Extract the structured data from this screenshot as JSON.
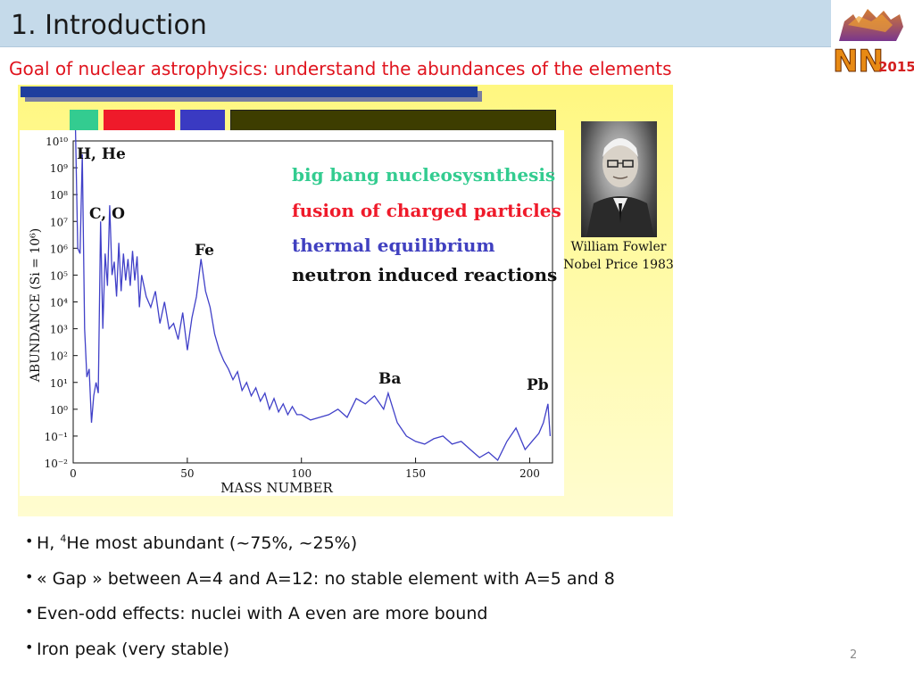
{
  "slide": {
    "title": "1. Introduction",
    "subtitle": "Goal of nuclear astrophysics: understand the abundances of the elements",
    "page_number": "2",
    "logo": {
      "text": "NN2015",
      "icon": "nn2015-conference-logo"
    }
  },
  "photo": {
    "icon": "portrait-photo",
    "caption_line1": "William Fowler",
    "caption_line2": "Nobel Price 1983"
  },
  "chart_data": {
    "type": "line",
    "xlabel": "MASS NUMBER",
    "ylabel": "ABUNDANCE   (Si = 10⁶)",
    "xlim": [
      0,
      210
    ],
    "ylim": [
      -2,
      10
    ],
    "y_scale": "log10",
    "x_ticks": [
      "0",
      "50",
      "100",
      "150",
      "200"
    ],
    "y_ticks": [
      "10⁻²",
      "10⁻¹",
      "10⁰",
      "10¹",
      "10²",
      "10³",
      "10⁴",
      "10⁵",
      "10⁶",
      "10⁷",
      "10⁸",
      "10⁹",
      "10¹⁰"
    ],
    "annotations": [
      {
        "text": "H, He",
        "x": 2,
        "y": 10
      },
      {
        "text": "C, O",
        "x": 8,
        "y": 8
      },
      {
        "text": "Fe",
        "x": 54,
        "y": 6.5
      },
      {
        "text": "Ba",
        "x": 134,
        "y": 1.5
      },
      {
        "text": "Pb",
        "x": 198,
        "y": 1.2
      }
    ],
    "legend": [
      {
        "text": "big bang nucleosysnthesis",
        "color": "#33cc90"
      },
      {
        "text": "fusion of charged particles",
        "color": "#ef1a2a"
      },
      {
        "text": "thermal equilibrium",
        "color": "#4040c0"
      },
      {
        "text": "neutron induced reactions",
        "color": "#111111"
      }
    ],
    "legend_position": "top-right",
    "line_color": "#4040c8",
    "x": [
      1,
      2,
      3,
      4,
      5,
      6,
      7,
      8,
      9,
      10,
      11,
      12,
      13,
      14,
      15,
      16,
      17,
      18,
      19,
      20,
      21,
      22,
      23,
      24,
      25,
      26,
      27,
      28,
      29,
      30,
      32,
      34,
      36,
      38,
      40,
      42,
      44,
      46,
      48,
      50,
      52,
      54,
      56,
      58,
      60,
      62,
      64,
      66,
      68,
      70,
      72,
      74,
      76,
      78,
      80,
      82,
      84,
      86,
      88,
      90,
      92,
      94,
      96,
      98,
      100,
      104,
      108,
      112,
      116,
      120,
      124,
      128,
      132,
      136,
      138,
      142,
      146,
      150,
      154,
      158,
      162,
      166,
      170,
      174,
      178,
      182,
      186,
      190,
      194,
      198,
      202,
      204,
      206,
      208,
      209
    ],
    "y": [
      10.4,
      6.0,
      5.8,
      9.5,
      3.0,
      1.2,
      1.5,
      -0.5,
      0.5,
      1.0,
      0.6,
      7.0,
      3.0,
      5.8,
      4.6,
      7.6,
      5.0,
      5.5,
      4.2,
      6.2,
      4.4,
      5.8,
      4.8,
      5.6,
      4.6,
      5.9,
      4.8,
      5.7,
      3.8,
      5.0,
      4.2,
      3.8,
      4.4,
      3.2,
      4.0,
      3.0,
      3.2,
      2.6,
      3.6,
      2.2,
      3.4,
      4.2,
      5.6,
      4.4,
      3.8,
      2.8,
      2.2,
      1.8,
      1.5,
      1.1,
      1.4,
      0.7,
      1.0,
      0.5,
      0.8,
      0.3,
      0.6,
      0.0,
      0.4,
      -0.1,
      0.2,
      -0.2,
      0.1,
      -0.2,
      -0.2,
      -0.4,
      -0.3,
      -0.2,
      0.0,
      -0.3,
      0.4,
      0.2,
      0.5,
      0.0,
      0.6,
      -0.5,
      -1.0,
      -1.2,
      -1.3,
      -1.1,
      -1.0,
      -1.3,
      -1.2,
      -1.5,
      -1.8,
      -1.6,
      -1.9,
      -1.2,
      -0.7,
      -1.5,
      -1.1,
      -0.9,
      -0.5,
      0.2,
      -1.0
    ]
  },
  "bullets": [
    {
      "pre": "H, ",
      "sup": "4",
      "post": "He most abundant (~75%, ~25%)"
    },
    {
      "pre": "« Gap » between A=4 and A=12: no stable element with A=5 and 8",
      "sup": "",
      "post": ""
    },
    {
      "pre": "Even-odd effects: nuclei with A even are more bound",
      "sup": "",
      "post": ""
    },
    {
      "pre": "Iron peak (very stable)",
      "sup": "",
      "post": ""
    }
  ]
}
